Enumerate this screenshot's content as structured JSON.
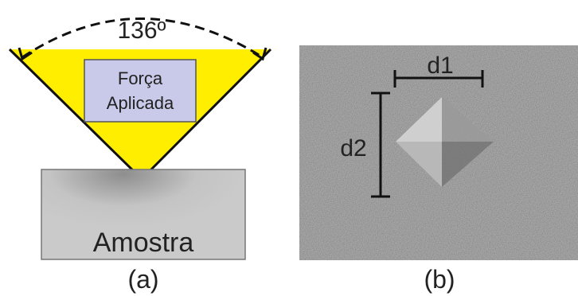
{
  "panel_a": {
    "angle_label": "136º",
    "force_label": [
      "Força",
      "Aplicada"
    ],
    "sample_label": "Amostra",
    "caption": "(a)"
  },
  "panel_b": {
    "d1_label": "d1",
    "d2_label": "d2",
    "caption": "(b)"
  }
}
